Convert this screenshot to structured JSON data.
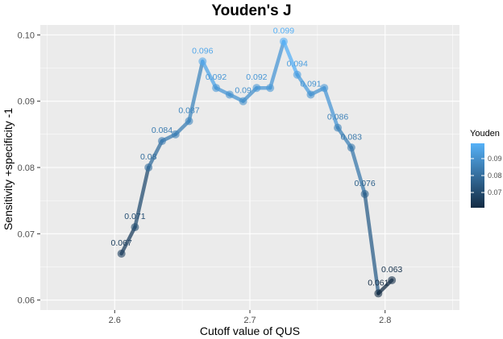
{
  "chart_data": {
    "type": "line",
    "title": "Youden's J",
    "xlabel": "Cutoff value of QUS",
    "ylabel": "Sensitivity +specificity -1",
    "xlim": [
      2.545,
      2.855
    ],
    "ylim": [
      0.0585,
      0.1015
    ],
    "x_ticks": [
      2.6,
      2.7,
      2.8
    ],
    "x_tick_labels": [
      "2.6",
      "2.7",
      "2.8"
    ],
    "y_ticks": [
      0.06,
      0.07,
      0.08,
      0.09,
      0.1
    ],
    "y_tick_labels": [
      "0.06",
      "0.07",
      "0.08",
      "0.09",
      "0.10"
    ],
    "grid": true,
    "legend": {
      "title": "Youden",
      "position": "right",
      "ticks": [
        0.07,
        0.08,
        0.09
      ],
      "tick_labels": [
        "0.07",
        "0.08",
        "0.09"
      ]
    },
    "colors": {
      "low": "#132B43",
      "high": "#56B1F7",
      "panel": "#EBEBEB",
      "grid": "#FFFFFF"
    },
    "series": [
      {
        "points": [
          {
            "x": 2.605,
            "y": 0.067,
            "label": "0.067"
          },
          {
            "x": 2.615,
            "y": 0.071,
            "label": "0.071"
          },
          {
            "x": 2.625,
            "y": 0.08,
            "label": "0.08"
          },
          {
            "x": 2.635,
            "y": 0.084,
            "label": "0.084"
          },
          {
            "x": 2.645,
            "y": 0.085,
            "label": ""
          },
          {
            "x": 2.655,
            "y": 0.087,
            "label": "0.087"
          },
          {
            "x": 2.665,
            "y": 0.096,
            "label": "0.096"
          },
          {
            "x": 2.675,
            "y": 0.092,
            "label": "0.092"
          },
          {
            "x": 2.685,
            "y": 0.091,
            "label": ""
          },
          {
            "x": 2.695,
            "y": 0.09,
            "label": "0.09"
          },
          {
            "x": 2.705,
            "y": 0.092,
            "label": "0.092"
          },
          {
            "x": 2.715,
            "y": 0.092,
            "label": ""
          },
          {
            "x": 2.725,
            "y": 0.099,
            "label": "0.099"
          },
          {
            "x": 2.735,
            "y": 0.094,
            "label": "0.094"
          },
          {
            "x": 2.745,
            "y": 0.091,
            "label": "0.091"
          },
          {
            "x": 2.755,
            "y": 0.092,
            "label": ""
          },
          {
            "x": 2.765,
            "y": 0.086,
            "label": "0.086"
          },
          {
            "x": 2.775,
            "y": 0.083,
            "label": "0.083"
          },
          {
            "x": 2.785,
            "y": 0.076,
            "label": "0.076"
          },
          {
            "x": 2.795,
            "y": 0.061,
            "label": "0.061"
          },
          {
            "x": 2.805,
            "y": 0.063,
            "label": "0.063"
          }
        ]
      }
    ]
  }
}
